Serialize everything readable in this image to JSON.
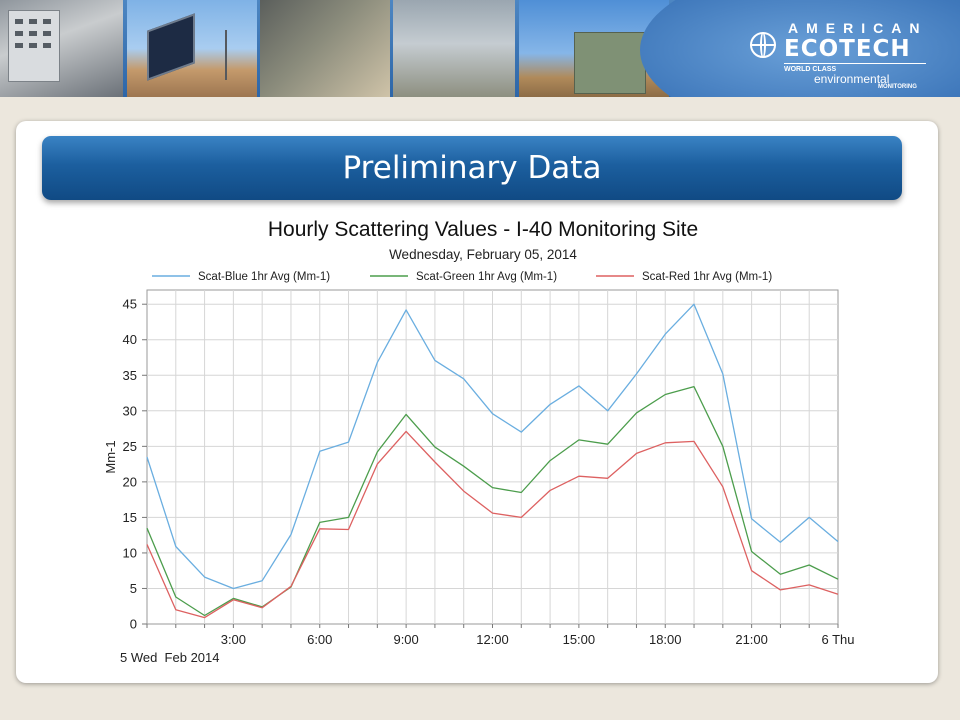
{
  "slide": {
    "header_title": "Preliminary Data"
  },
  "logo": {
    "line1": "AMERICAN",
    "line2": "ECOTECH",
    "line3": "WORLD CLASS",
    "line4": "environmental",
    "line5": "MONITORING"
  },
  "colors": {
    "blue": "#6aaee0",
    "green": "#4c9d4c",
    "red": "#dd6161",
    "header": "#1c5f9f"
  },
  "chart_data": {
    "type": "line",
    "title": "Hourly Scattering Values - I-40 Monitoring Site",
    "subtitle": "Wednesday, February 05, 2014",
    "ylabel": "Mm-1",
    "xlabel": "",
    "ylim": [
      0,
      47
    ],
    "yticks": [
      0,
      5,
      10,
      15,
      20,
      25,
      30,
      35,
      40,
      45
    ],
    "x_hours": [
      0,
      1,
      2,
      3,
      4,
      5,
      6,
      7,
      8,
      9,
      10,
      11,
      12,
      13,
      14,
      15,
      16,
      17,
      18,
      19,
      20,
      21,
      22,
      23,
      24
    ],
    "x_tick_hours": [
      3,
      6,
      9,
      12,
      15,
      18,
      21,
      24
    ],
    "x_tick_labels": [
      "3:00",
      "6:00",
      "9:00",
      "12:00",
      "15:00",
      "18:00",
      "21:00",
      "6 Thu"
    ],
    "x_start_label": "5 Wed  Feb 2014",
    "grid": true,
    "legend_position": "top",
    "series": [
      {
        "name": "Scat-Blue 1hr Avg (Mm-1)",
        "values": [
          23.5,
          10.9,
          6.6,
          5.0,
          6.1,
          12.6,
          24.3,
          25.6,
          36.8,
          44.2,
          37.1,
          34.5,
          29.6,
          27.0,
          30.9,
          33.5,
          30.0,
          35.2,
          40.8,
          45.0,
          35.2,
          14.8,
          11.5,
          15.0,
          11.6
        ]
      },
      {
        "name": "Scat-Green 1hr Avg (Mm-1)",
        "values": [
          13.5,
          3.8,
          1.2,
          3.6,
          2.4,
          5.2,
          14.3,
          15.0,
          24.2,
          29.5,
          24.9,
          22.2,
          19.2,
          18.5,
          23.0,
          25.9,
          25.3,
          29.7,
          32.3,
          33.4,
          25.0,
          10.2,
          7.0,
          8.3,
          6.3
        ]
      },
      {
        "name": "Scat-Red 1hr Avg (Mm-1)",
        "values": [
          11.2,
          2.0,
          0.9,
          3.4,
          2.3,
          5.3,
          13.4,
          13.3,
          22.5,
          27.1,
          22.8,
          18.7,
          15.6,
          15.0,
          18.8,
          20.8,
          20.5,
          24.0,
          25.5,
          25.7,
          19.3,
          7.5,
          4.8,
          5.5,
          4.2
        ]
      }
    ]
  }
}
